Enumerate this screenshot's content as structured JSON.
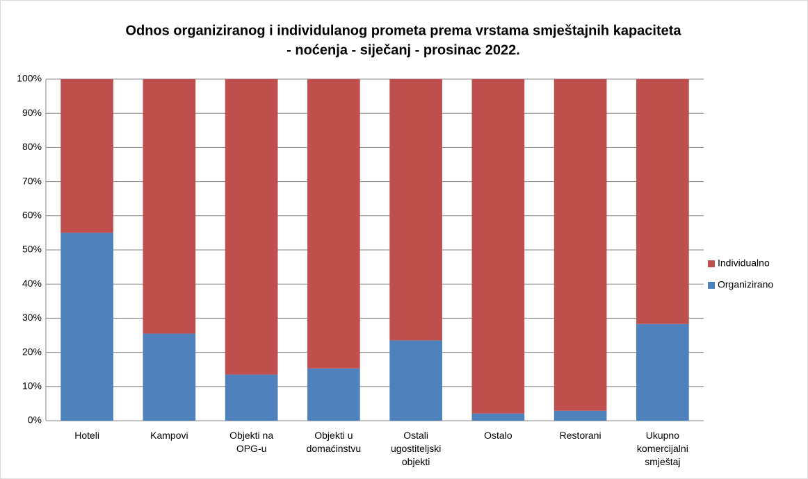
{
  "chart_data": {
    "type": "stacked_bar",
    "title": [
      "Odnos organiziranog i individulanog prometa prema vrstama smještajnih kapaciteta",
      "- noćenja - siječanj - prosinac 2022."
    ],
    "categories": [
      "Hoteli",
      "Kampovi",
      "Objekti na OPG-u",
      "Objekti u domaćinstvu",
      "Ostali ugostiteljski objekti",
      "Ostalo",
      "Restorani",
      "Ukupno komercijalni smještaj"
    ],
    "series": [
      {
        "name": "Organizirano",
        "color": "#4f81bd",
        "values": [
          55,
          25.5,
          13.5,
          15.3,
          23.5,
          2.1,
          2.9,
          28.3
        ]
      },
      {
        "name": "Individualno",
        "color": "#c0504d",
        "values": [
          45,
          74.5,
          86.5,
          84.7,
          76.5,
          97.9,
          97.1,
          71.7
        ]
      }
    ],
    "ylim": [
      0,
      100
    ],
    "yticks": [
      {
        "value": 0,
        "label": "0%"
      },
      {
        "value": 10,
        "label": "10%"
      },
      {
        "value": 20,
        "label": "20%"
      },
      {
        "value": 30,
        "label": "30%"
      },
      {
        "value": 40,
        "label": "40%"
      },
      {
        "value": 50,
        "label": "50%"
      },
      {
        "value": 60,
        "label": "60%"
      },
      {
        "value": 70,
        "label": "70%"
      },
      {
        "value": 80,
        "label": "80%"
      },
      {
        "value": 90,
        "label": "90%"
      },
      {
        "value": 100,
        "label": "100%"
      }
    ],
    "grid": true,
    "legend": "right"
  }
}
